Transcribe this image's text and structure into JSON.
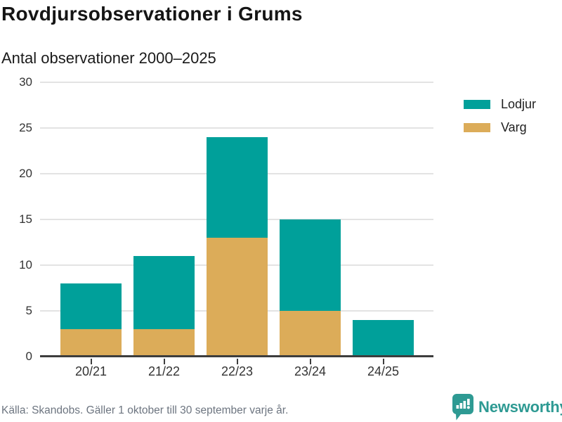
{
  "header": {
    "title": "Rovdjursobservationer i Grums",
    "subtitle": "Antal observationer 2000–2025"
  },
  "chart_data": {
    "type": "bar",
    "stacked": true,
    "title": "Rovdjursobservationer i Grums",
    "subtitle": "Antal observationer 2000–2025",
    "categories": [
      "20/21",
      "21/22",
      "22/23",
      "23/24",
      "24/25"
    ],
    "series": [
      {
        "name": "Varg",
        "color": "#dcac59",
        "values": [
          3,
          3,
          13,
          5,
          0
        ]
      },
      {
        "name": "Lodjur",
        "color": "#00a09a",
        "values": [
          5,
          8,
          11,
          10,
          4
        ]
      }
    ],
    "totals": [
      8,
      11,
      24,
      15,
      4
    ],
    "ylim": [
      0,
      30
    ],
    "yticks": [
      0,
      5,
      10,
      15,
      20,
      25,
      30
    ],
    "grid": true,
    "legend_position": "top-right",
    "legend": [
      {
        "label": "Lodjur",
        "color": "#00a09a"
      },
      {
        "label": "Varg",
        "color": "#dcac59"
      }
    ]
  },
  "footer": {
    "source": "Källa: Skandobs. Gäller 1 oktober till 30 september varje år.",
    "brand_name": "Newsworthy"
  },
  "colors": {
    "lodjur": "#00a09a",
    "varg": "#dcac59",
    "brand": "#2e9a93",
    "grid": "#e3e3e3",
    "axis": "#3d3d3d",
    "tick_text": "#333333",
    "title_text": "#151515",
    "muted_text": "#6d7580"
  }
}
